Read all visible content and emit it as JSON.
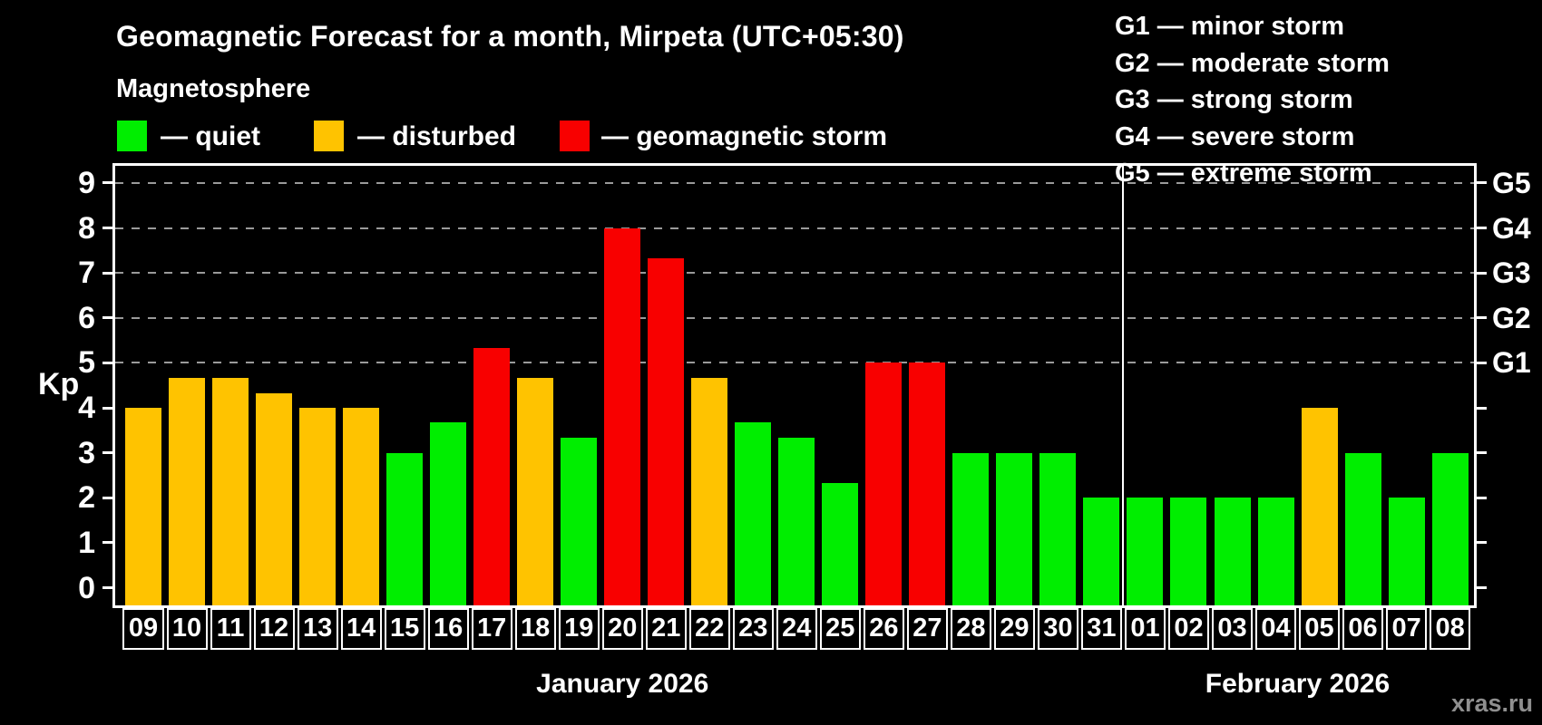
{
  "title": "Geomagnetic Forecast for a month, Mirpeta (UTC+05:30)",
  "subtitle": "Magnetosphere",
  "legend": {
    "quiet": {
      "label": "— quiet",
      "color": "#00ee00"
    },
    "disturbed": {
      "label": "— disturbed",
      "color": "#ffc300"
    },
    "storm": {
      "label": "— geomagnetic storm",
      "color": "#f80000"
    }
  },
  "g_scale_legend": [
    "G1 — minor storm",
    "G2 — moderate storm",
    "G3 — strong storm",
    "G4 — severe storm",
    "G5 — extreme storm"
  ],
  "watermark": "xras.ru",
  "chart_data": {
    "type": "bar",
    "ylabel": "Kp",
    "ylim": [
      -0.39,
      9.38
    ],
    "yticks": [
      0,
      1,
      2,
      3,
      4,
      5,
      6,
      7,
      8,
      9
    ],
    "gridlines_kp": [
      5,
      6,
      7,
      8,
      9
    ],
    "right_axis_labels": [
      {
        "kp": 9,
        "label": "G5"
      },
      {
        "kp": 8,
        "label": "G4"
      },
      {
        "kp": 7,
        "label": "G3"
      },
      {
        "kp": 6,
        "label": "G2"
      },
      {
        "kp": 5,
        "label": "G1"
      }
    ],
    "categories": [
      "09",
      "10",
      "11",
      "12",
      "13",
      "14",
      "15",
      "16",
      "17",
      "18",
      "19",
      "20",
      "21",
      "22",
      "23",
      "24",
      "25",
      "26",
      "27",
      "28",
      "29",
      "30",
      "31",
      "01",
      "02",
      "03",
      "04",
      "05",
      "06",
      "07",
      "08"
    ],
    "values": [
      4.0,
      4.67,
      4.67,
      4.33,
      4.0,
      4.0,
      3.0,
      3.67,
      5.33,
      4.67,
      3.33,
      8.0,
      7.33,
      4.67,
      3.67,
      3.33,
      2.33,
      5.0,
      5.0,
      3.0,
      3.0,
      3.0,
      2.0,
      2.0,
      2.0,
      2.0,
      2.0,
      4.0,
      3.0,
      2.0,
      3.0
    ],
    "statuses": [
      "disturbed",
      "disturbed",
      "disturbed",
      "disturbed",
      "disturbed",
      "disturbed",
      "quiet",
      "quiet",
      "storm",
      "disturbed",
      "quiet",
      "storm",
      "storm",
      "disturbed",
      "quiet",
      "quiet",
      "quiet",
      "storm",
      "storm",
      "quiet",
      "quiet",
      "quiet",
      "quiet",
      "quiet",
      "quiet",
      "quiet",
      "quiet",
      "disturbed",
      "quiet",
      "quiet",
      "quiet"
    ],
    "separator_index": 23,
    "months": [
      {
        "label": "January 2026",
        "from": 0,
        "to": 22
      },
      {
        "label": "February 2026",
        "from": 23,
        "to": 30
      }
    ],
    "legend_position": "top",
    "grid": "dashed horizontal at G-levels only"
  }
}
